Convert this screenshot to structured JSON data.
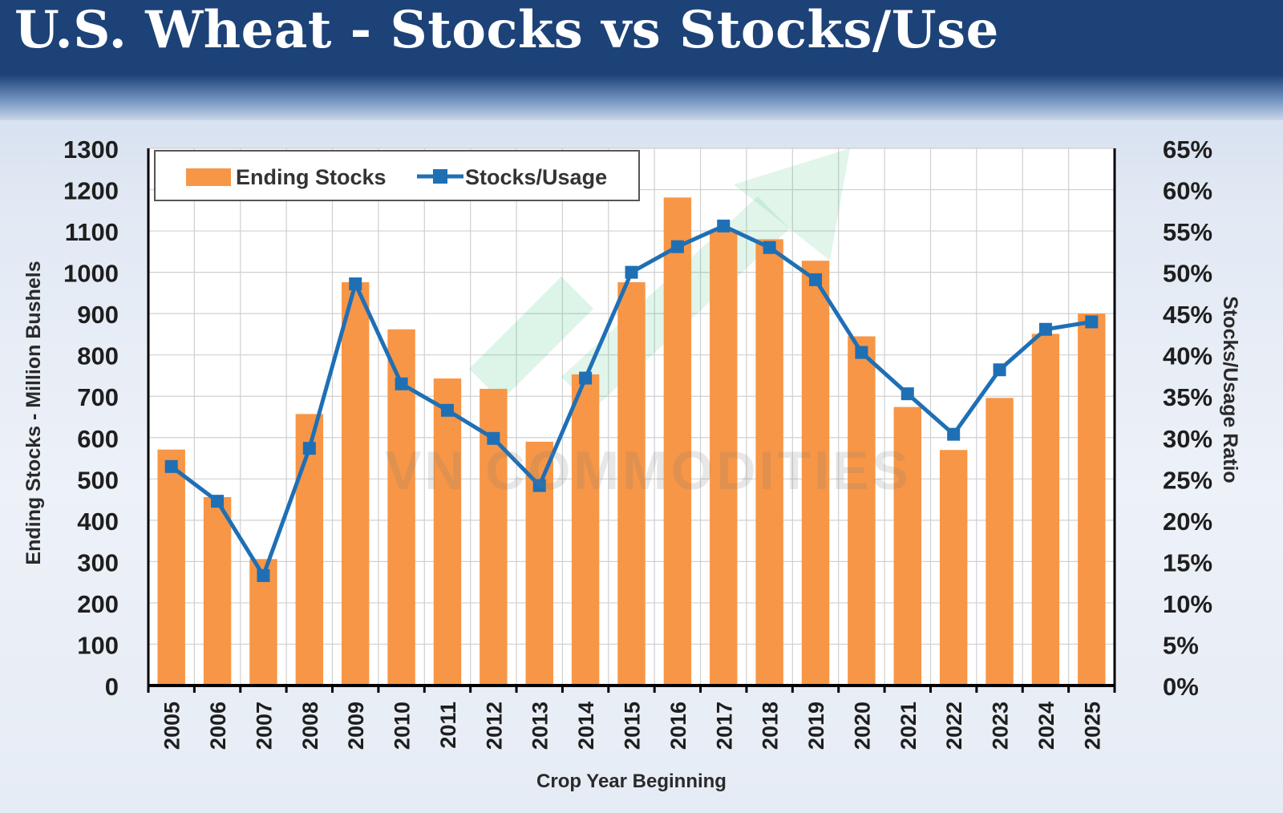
{
  "header": {
    "title": "U.S. Wheat - Stocks vs Stocks/Use"
  },
  "watermark": {
    "text": "VN COMMODITIES"
  },
  "colors": {
    "bar": "#f79646",
    "line": "#1f6fb5",
    "header": "#1c4278",
    "grid": "#d0d0d0",
    "axis": "#000000",
    "watermark_arrow": "#2eb873"
  },
  "chart_data": {
    "type": "bar",
    "title": "U.S. Wheat - Stocks vs Stocks/Use",
    "xlabel": "Crop Year Beginning",
    "ylabel": "Ending Stocks - Million Bushels",
    "y2label": "Stocks/Usage Ratio",
    "categories": [
      "2005",
      "2006",
      "2007",
      "2008",
      "2009",
      "2010",
      "2011",
      "2012",
      "2013",
      "2014",
      "2015",
      "2016",
      "2017",
      "2018",
      "2019",
      "2020",
      "2021",
      "2022",
      "2023",
      "2024",
      "2025"
    ],
    "ylim": [
      0,
      1300
    ],
    "yticks": [
      0,
      100,
      200,
      300,
      400,
      500,
      600,
      700,
      800,
      900,
      1000,
      1100,
      1200,
      1300
    ],
    "y2lim": [
      0,
      65
    ],
    "y2ticks": [
      "0%",
      "5%",
      "10%",
      "15%",
      "20%",
      "25%",
      "30%",
      "35%",
      "40%",
      "45%",
      "50%",
      "55%",
      "60%",
      "65%"
    ],
    "grid": true,
    "legend_position": "top-left",
    "series": [
      {
        "name": "Ending Stocks",
        "type": "bar",
        "axis": "left",
        "values": [
          571,
          456,
          306,
          657,
          976,
          862,
          743,
          718,
          590,
          753,
          976,
          1181,
          1100,
          1080,
          1028,
          845,
          674,
          570,
          696,
          851,
          900
        ]
      },
      {
        "name": "Stocks/Usage",
        "type": "line",
        "axis": "right",
        "marker": "square",
        "values": [
          26.5,
          22.3,
          13.3,
          28.7,
          48.6,
          36.5,
          33.3,
          29.9,
          24.2,
          37.2,
          50.0,
          53.1,
          55.6,
          53.0,
          49.1,
          40.3,
          35.3,
          30.4,
          38.2,
          43.1,
          44.0
        ]
      }
    ]
  }
}
